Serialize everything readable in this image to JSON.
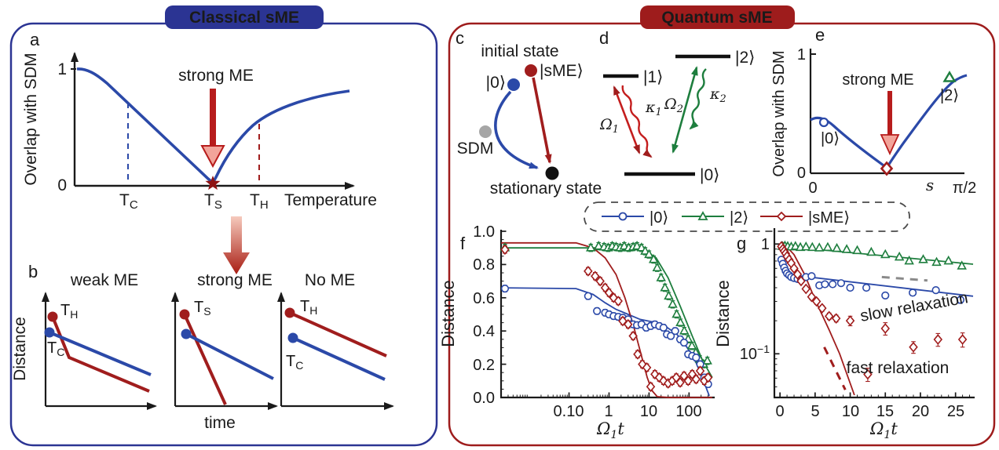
{
  "classical": {
    "title": "Classical sME",
    "panel_a": {
      "label": "a",
      "ylabel": "Overlap with SDM",
      "ytick_top": "1",
      "ytick_bottom": "0",
      "annotation": "strong ME",
      "xticks": [
        {
          "t": "T",
          "s": "C"
        },
        {
          "t": "T",
          "s": "S"
        },
        {
          "t": "T",
          "s": "H"
        }
      ],
      "xlabel": "Temperature"
    },
    "panel_b": {
      "label": "b",
      "ylabel": "Distance",
      "xlabel": "time",
      "plots": [
        {
          "title": "weak ME",
          "dot_top": {
            "t": "T",
            "s": "H"
          },
          "dot_bottom": {
            "t": "T",
            "s": "C"
          }
        },
        {
          "title": "strong ME",
          "dot_top": {
            "t": "T",
            "s": "S"
          }
        },
        {
          "title": "No ME",
          "dot_top": {
            "t": "T",
            "s": "H"
          },
          "dot_bottom": {
            "t": "T",
            "s": "C"
          }
        }
      ]
    }
  },
  "quantum": {
    "title": "Quantum sME",
    "panel_c": {
      "label": "c",
      "initial": "initial state",
      "sme": "|sME⟩",
      "zero": "|0⟩",
      "sdm": "SDM",
      "stationary": "stationary state"
    },
    "panel_d": {
      "label": "d",
      "level1": "|1⟩",
      "level2": "|2⟩",
      "level0": "|0⟩",
      "omega1": {
        "t": "Ω",
        "s": "1"
      },
      "kappa1": {
        "t": "κ",
        "s": "1"
      },
      "omega2": {
        "t": "Ω",
        "s": "2"
      },
      "kappa2": {
        "t": "κ",
        "s": "2"
      }
    },
    "panel_e": {
      "label": "e",
      "ylabel": "Overlap with SDM",
      "ytick_top": "1",
      "ytick_bottom": "0",
      "xtick_left": "0",
      "xtick_right": "π/2",
      "xlabel": "s",
      "annotation": "strong ME",
      "marker_zero": "|0⟩",
      "marker_two": "|2⟩"
    },
    "legend": {
      "entries": [
        {
          "label": "|0⟩"
        },
        {
          "label": "|2⟩"
        },
        {
          "label": "|sME⟩"
        }
      ]
    },
    "panel_f": {
      "label": "f",
      "ylabel": "Distance",
      "xlabel": {
        "t": "Ω",
        "s": "1",
        "u": "t"
      },
      "yticks": [
        "1.0",
        "0.8",
        "0.6",
        "0.4",
        "0.2",
        "0.0"
      ],
      "xticks": [
        "0.10",
        "1",
        "10",
        "100"
      ]
    },
    "panel_g": {
      "label": "g",
      "ylabel": "Distance",
      "ytick_top": "1",
      "ytick_low": {
        "t": "10",
        "s": "−1"
      },
      "xticks": [
        "0",
        "5",
        "10",
        "15",
        "20",
        "25"
      ],
      "xlabel": {
        "t": "Ω",
        "s": "1",
        "u": "t"
      },
      "slow": "slow relaxation",
      "fast": "fast relaxation"
    }
  },
  "colors": {
    "blue": "#2b49a8",
    "navy": "#2b3493",
    "red": "#a01d1d",
    "darkred": "#8e1313",
    "green": "#1e7e3e",
    "gray": "#8a8a8a",
    "dotgray": "#a6a6a6",
    "pink": "#f2a49a"
  },
  "chart_data": [
    {
      "id": "a",
      "type": "line",
      "xlabel": "Temperature",
      "ylabel": "Overlap with SDM",
      "yticks": [
        "0",
        "1"
      ],
      "x_annotations": [
        "TC",
        "TS",
        "TH"
      ],
      "annotation": "strong ME",
      "description": "Schematic: overlap starts at 1, falls linearly to 0 at TS (strong ME, star), then partially recovers to ~0.8 at high temperature; dashed guides at TC (blue) and TH (red)."
    },
    {
      "id": "b",
      "type": "line",
      "subplots": [
        "weak ME",
        "strong ME",
        "No ME"
      ],
      "xlabel": "time",
      "ylabel": "Distance",
      "description": "Schematic: hot (red, TH/TS) and cold (blue, TC) distance-vs-time trajectories; weak ME: red crosses blue early; strong ME: red plunges to zero; No ME: curves stay parallel."
    },
    {
      "id": "e",
      "type": "line",
      "xlabel": "s",
      "ylabel": "Overlap with SDM",
      "xlim_labels": [
        "0",
        "π/2"
      ],
      "ylim": [
        0,
        1
      ],
      "markers": [
        {
          "label": "|0⟩",
          "x": 0.12,
          "y": 0.52,
          "marker": "circle",
          "color": "blue"
        },
        {
          "label": "|sME⟩",
          "x": 0.62,
          "y": 0.02,
          "marker": "diamond",
          "color": "red"
        },
        {
          "label": "|2⟩",
          "x": 1.42,
          "y": 0.8,
          "marker": "triangle",
          "color": "green"
        }
      ],
      "annotation": "strong ME",
      "description": "Overlap with SDM dips to 0 at the strong-ME initial state and recovers toward |2⟩ at s = π/2."
    },
    {
      "id": "f",
      "type": "scatter",
      "xlabel": "Ω₁t",
      "ylabel": "Distance",
      "xscale": "log",
      "yscale": "linear",
      "xlim": [
        0.002,
        400
      ],
      "ylim": [
        0,
        1
      ],
      "xtick_values": [
        0.1,
        1,
        10,
        100
      ],
      "ytick_values": [
        0,
        0.2,
        0.4,
        0.6,
        0.8,
        1.0
      ],
      "xminor": "log",
      "yminor": 0.05,
      "series": [
        {
          "name": "|2⟩",
          "marker": "triangle",
          "color": "green",
          "err": 0.022,
          "x": [
            0.0025,
            0.35,
            0.55,
            0.75,
            0.95,
            1.2,
            1.5,
            1.9,
            2.4,
            3.1,
            4.0,
            5.0,
            6.5,
            8.0,
            10,
            13,
            16,
            20,
            25,
            31,
            39,
            49,
            61,
            76,
            95,
            118,
            147,
            184,
            230,
            287
          ],
          "y": [
            0.9,
            0.9,
            0.91,
            0.905,
            0.9,
            0.91,
            0.905,
            0.9,
            0.91,
            0.9,
            0.905,
            0.91,
            0.9,
            0.88,
            0.86,
            0.83,
            0.78,
            0.72,
            0.66,
            0.61,
            0.56,
            0.5,
            0.45,
            0.4,
            0.35,
            0.31,
            0.27,
            0.23,
            0.2,
            0.22
          ]
        },
        {
          "name": "|0⟩",
          "marker": "circle",
          "color": "blue",
          "err": 0.02,
          "x": [
            0.0025,
            0.3,
            0.5,
            0.8,
            1.0,
            1.3,
            1.7,
            2.2,
            3.0,
            4.0,
            5.0,
            6.5,
            8.5,
            11,
            14,
            18,
            23,
            28,
            35,
            45,
            60,
            75,
            95,
            120,
            150,
            190,
            240,
            300
          ],
          "y": [
            0.655,
            0.61,
            0.52,
            0.51,
            0.5,
            0.49,
            0.485,
            0.48,
            0.47,
            0.44,
            0.435,
            0.44,
            0.42,
            0.43,
            0.44,
            0.43,
            0.42,
            0.38,
            0.37,
            0.4,
            0.35,
            0.33,
            0.26,
            0.25,
            0.24,
            0.2,
            0.12,
            0.08
          ]
        },
        {
          "name": "|sME⟩",
          "marker": "diamond",
          "color": "red",
          "err": 0.022,
          "x": [
            0.0025,
            0.3,
            0.45,
            0.6,
            0.8,
            1.0,
            1.3,
            1.7,
            2.2,
            3.0,
            4.0,
            5.2,
            6.8,
            8.8,
            11,
            14,
            18,
            23,
            30,
            38,
            48,
            60,
            75,
            95,
            120,
            150,
            190,
            240,
            300
          ],
          "y": [
            0.89,
            0.76,
            0.73,
            0.7,
            0.66,
            0.63,
            0.6,
            0.58,
            0.46,
            0.44,
            0.37,
            0.26,
            0.2,
            0.18,
            0.065,
            0.14,
            0.12,
            0.1,
            0.085,
            0.1,
            0.12,
            0.09,
            0.13,
            0.1,
            0.14,
            0.11,
            0.16,
            0.1,
            0.12
          ]
        }
      ],
      "fits": [
        {
          "color": "green",
          "points": [
            [
              0.002,
              0.9
            ],
            [
              1,
              0.9
            ],
            [
              4,
              0.9
            ],
            [
              8,
              0.885
            ],
            [
              15,
              0.84
            ],
            [
              30,
              0.72
            ],
            [
              60,
              0.55
            ],
            [
              120,
              0.37
            ],
            [
              220,
              0.22
            ],
            [
              380,
              0.12
            ]
          ]
        },
        {
          "color": "blue",
          "points": [
            [
              0.002,
              0.66
            ],
            [
              0.15,
              0.655
            ],
            [
              0.4,
              0.62
            ],
            [
              0.8,
              0.57
            ],
            [
              1.5,
              0.53
            ],
            [
              3,
              0.5
            ],
            [
              6,
              0.47
            ],
            [
              12,
              0.455
            ],
            [
              25,
              0.43
            ],
            [
              50,
              0.38
            ],
            [
              90,
              0.3
            ],
            [
              150,
              0.21
            ],
            [
              230,
              0.1
            ],
            [
              320,
              0.01
            ]
          ]
        },
        {
          "color": "red",
          "points": [
            [
              0.002,
              0.93
            ],
            [
              0.15,
              0.93
            ],
            [
              0.4,
              0.9
            ],
            [
              0.8,
              0.84
            ],
            [
              1.5,
              0.74
            ],
            [
              2.5,
              0.6
            ],
            [
              4,
              0.44
            ],
            [
              6,
              0.28
            ],
            [
              9,
              0.12
            ],
            [
              12,
              0.04
            ],
            [
              16,
              0.005
            ],
            [
              30,
              0.0
            ],
            [
              380,
              0.0
            ]
          ]
        }
      ]
    },
    {
      "id": "g",
      "type": "scatter",
      "xlabel": "Ω₁t",
      "ylabel": "Distance",
      "xscale": "linear",
      "yscale": "log",
      "xlim": [
        -0.8,
        27.5
      ],
      "ylim": [
        0.04,
        1.35
      ],
      "xtick_values": [
        0,
        5,
        10,
        15,
        20,
        25
      ],
      "ytick_values": [
        1,
        0.1
      ],
      "xminor": 1,
      "yminor": "log",
      "annotations": [
        "slow relaxation",
        "fast relaxation"
      ],
      "series": [
        {
          "name": "|2⟩",
          "marker": "triangle",
          "color": "green",
          "err": 0.03,
          "x": [
            0.3,
            0.7,
            1.1,
            1.6,
            2.2,
            2.9,
            3.7,
            4.6,
            5.6,
            6.8,
            8.1,
            9.5,
            11,
            13,
            15,
            17,
            18.4,
            20.4,
            22.3,
            24,
            25.9
          ],
          "y": [
            0.95,
            0.96,
            0.95,
            0.94,
            0.95,
            0.93,
            0.94,
            0.93,
            0.92,
            0.93,
            0.91,
            0.89,
            0.87,
            0.84,
            0.8,
            0.76,
            0.7,
            0.72,
            0.68,
            0.7,
            0.63
          ]
        },
        {
          "name": "|0⟩",
          "marker": "circle",
          "color": "blue",
          "err": 0.022,
          "x": [
            0.2,
            0.4,
            0.6,
            0.8,
            1.0,
            1.3,
            1.6,
            2.0,
            2.5,
            3.0,
            3.7,
            4.5,
            5.6,
            6.4,
            7.5,
            8.7,
            10,
            12.3,
            15,
            18.9,
            22.2,
            25.7
          ],
          "y": [
            0.72,
            0.66,
            0.61,
            0.57,
            0.54,
            0.52,
            0.5,
            0.49,
            0.48,
            0.47,
            0.5,
            0.51,
            0.42,
            0.43,
            0.43,
            0.44,
            0.4,
            0.4,
            0.34,
            0.36,
            0.38,
            0.31
          ]
        },
        {
          "name": "|sME⟩",
          "marker": "diamond",
          "color": "red",
          "err": [
            0.02,
            0.02,
            0.02,
            0.02,
            0.02,
            0.02,
            0.02,
            0.02,
            0.02,
            0.02,
            0.018,
            0.018,
            0.018,
            0.016,
            0.015,
            0.015,
            0.02,
            0.009,
            0.022,
            0.014,
            0.018,
            0.02
          ],
          "x": [
            0.2,
            0.4,
            0.6,
            0.8,
            1.0,
            1.3,
            1.6,
            2.0,
            2.5,
            3.0,
            3.7,
            4.5,
            5.2,
            6.0,
            7.0,
            8.0,
            10,
            12.5,
            15,
            19,
            22.5,
            26
          ],
          "y": [
            0.95,
            0.9,
            0.86,
            0.82,
            0.77,
            0.72,
            0.67,
            0.6,
            0.53,
            0.46,
            0.39,
            0.33,
            0.3,
            0.26,
            0.22,
            0.21,
            0.2,
            0.065,
            0.17,
            0.115,
            0.135,
            0.135
          ]
        }
      ],
      "fits": [
        {
          "color": "green",
          "points": [
            [
              0,
              0.96
            ],
            [
              27.5,
              0.655
            ]
          ]
        },
        {
          "color": "blue",
          "points": [
            [
              1.3,
              0.525
            ],
            [
              27.5,
              0.335
            ]
          ]
        },
        {
          "color": "red",
          "points": [
            [
              0.3,
              1.05
            ],
            [
              2,
              0.8
            ],
            [
              3.5,
              0.53
            ],
            [
              5,
              0.31
            ],
            [
              7,
              0.165
            ],
            [
              8.5,
              0.1
            ],
            [
              10.6,
              0.042
            ]
          ]
        },
        {
          "color": "red",
          "dash": true,
          "points": [
            [
              6.3,
              0.115
            ],
            [
              9.3,
              0.047
            ]
          ]
        },
        {
          "color": "gray",
          "dash": true,
          "points": [
            [
              14.5,
              0.5
            ],
            [
              21,
              0.465
            ]
          ]
        }
      ]
    }
  ]
}
